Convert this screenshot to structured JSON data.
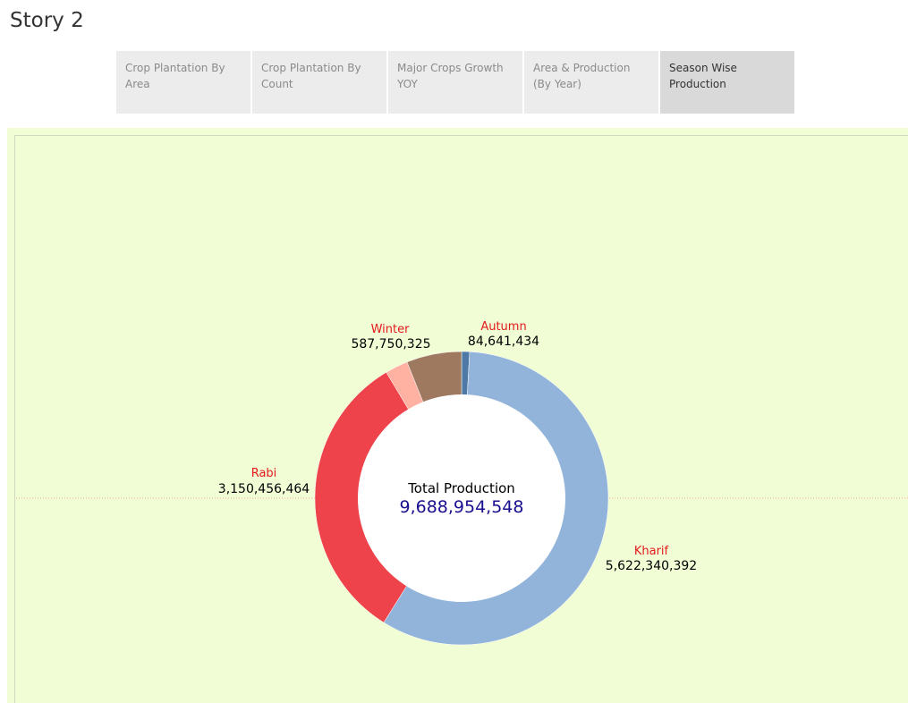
{
  "story": {
    "title": "Story 2"
  },
  "tabs": [
    {
      "label": "Crop Plantation By Area",
      "active": false
    },
    {
      "label": "Crop Plantation By Count",
      "active": false
    },
    {
      "label": "Major Crops Growth YOY",
      "active": false
    },
    {
      "label": "Area & Production  (By Year)",
      "active": false
    },
    {
      "label": "Season Wise Production",
      "active": true
    }
  ],
  "colors": {
    "panel_bg": "#f1fdd5",
    "label_red": "#e31a1c",
    "total_blue": "#1a0f8f"
  },
  "chart_data": {
    "type": "pie",
    "donut": true,
    "center_label": "Total Production",
    "total": "9,688,954,548",
    "slices": [
      {
        "name": "Autumn",
        "value": 84641434,
        "display": "84,641,434",
        "color": "#4e79a7"
      },
      {
        "name": "Kharif",
        "value": 5622340392,
        "display": "5,622,340,392",
        "color": "#93b4da"
      },
      {
        "name": "Rabi",
        "value": 3150456464,
        "display": "3,150,456,464",
        "color": "#ee434b"
      },
      {
        "name": "",
        "value": 243766000,
        "display": "",
        "color": "#ffb1a2"
      },
      {
        "name": "Winter",
        "value": 587750325,
        "display": "587,750,325",
        "color": "#9f7860"
      }
    ]
  }
}
